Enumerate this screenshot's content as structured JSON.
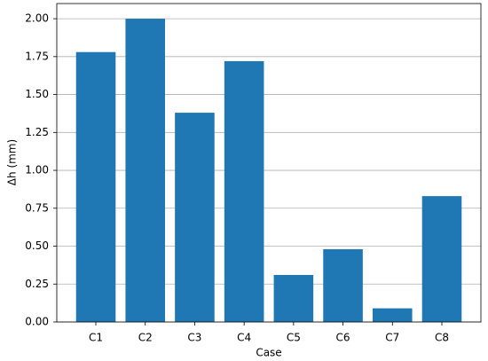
{
  "chart_data": {
    "type": "bar",
    "x_label": "Case",
    "y_label": "Δh (mm)",
    "categories": [
      "C1",
      "C2",
      "C3",
      "C4",
      "C5",
      "C6",
      "C7",
      "C8"
    ],
    "values": [
      1.78,
      2.0,
      1.38,
      1.72,
      0.31,
      0.48,
      0.09,
      0.83
    ],
    "color": "#1f77b4",
    "ylim": [
      0,
      2.1
    ],
    "yticks": [
      {
        "value": 0,
        "label": "0.00"
      },
      {
        "value": 0.25,
        "label": "0.25"
      },
      {
        "value": 0.5,
        "label": "0.50"
      },
      {
        "value": 0.75,
        "label": "0.75"
      },
      {
        "value": 1,
        "label": "1.00"
      },
      {
        "value": 1.25,
        "label": "1.25"
      },
      {
        "value": 1.5,
        "label": "1.50"
      },
      {
        "value": 1.75,
        "label": "1.75"
      },
      {
        "value": 2,
        "label": "2.00"
      }
    ],
    "grid": true
  }
}
